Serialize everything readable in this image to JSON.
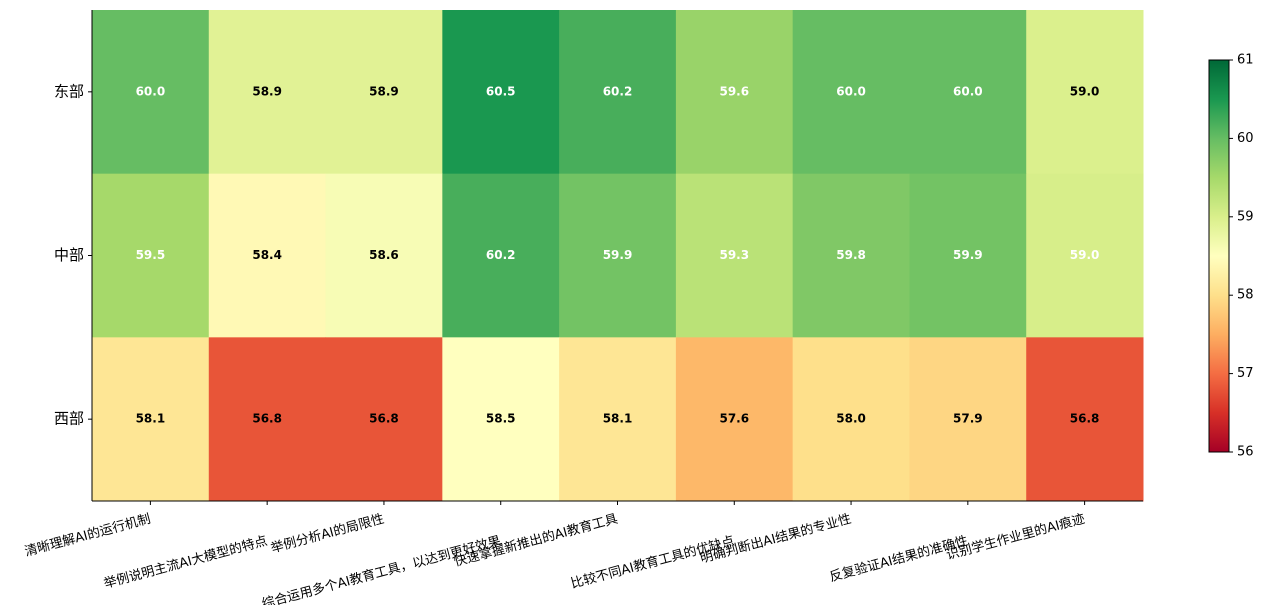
{
  "chart_data": {
    "type": "heatmap",
    "x_categories": [
      "清晰理解AI的运行机制",
      "举例说明主流AI大模型的特点",
      "举例分析AI的局限性",
      "综合运用多个AI教育工具，以达到更好效果",
      "快速掌握新推出的AI教育工具",
      "比较不同AI教育工具的优缺点",
      "明确判断出AI结果的专业性",
      "反复验证AI结果的准确性",
      "识别学生作业里的AI痕迹"
    ],
    "y_categories": [
      "东部",
      "中部",
      "西部"
    ],
    "values": [
      [
        60.0,
        58.9,
        58.9,
        60.5,
        60.2,
        59.6,
        60.0,
        60.0,
        58.98
      ],
      [
        59.5,
        58.4,
        58.6,
        60.2,
        59.9,
        59.3,
        59.8,
        59.9,
        59.02
      ],
      [
        58.1,
        56.8,
        56.8,
        58.5,
        58.1,
        57.6,
        58.0,
        57.9,
        56.8
      ]
    ],
    "value_labels": [
      [
        "60.0",
        "58.9",
        "58.9",
        "60.5",
        "60.2",
        "59.6",
        "60.0",
        "60.0",
        "59.0"
      ],
      [
        "59.5",
        "58.4",
        "58.6",
        "60.2",
        "59.9",
        "59.3",
        "59.8",
        "59.9",
        "59.0"
      ],
      [
        "58.1",
        "56.8",
        "56.8",
        "58.5",
        "58.1",
        "57.6",
        "58.0",
        "57.9",
        "56.8"
      ]
    ],
    "colormap": [
      "#a50026",
      "#d73027",
      "#f46d43",
      "#fdae61",
      "#fee08b",
      "#ffffbf",
      "#d9ef8b",
      "#a6d96a",
      "#66bd63",
      "#1a9850",
      "#006837"
    ],
    "clim": [
      56,
      61
    ],
    "cticks": [
      56,
      57,
      58,
      59,
      60,
      61
    ]
  }
}
